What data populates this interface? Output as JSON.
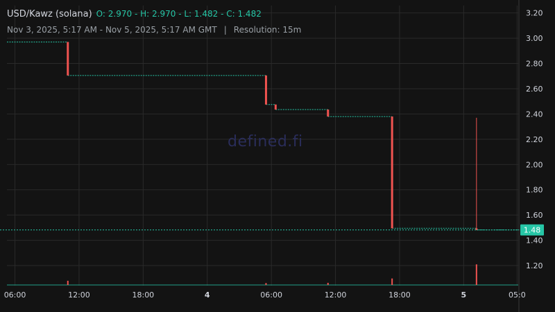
{
  "legend": {
    "pair": "USD/Kawz (solana)",
    "open_label": "O:",
    "open": "2.970",
    "high_label": "H:",
    "high": "2.970",
    "low_label": "L:",
    "low": "1.482",
    "close_label": "C:",
    "close": "1.482",
    "range": "Nov 3, 2025, 5:17 AM - Nov 5, 2025, 5:17 AM GMT",
    "separator": "|",
    "resolution": "Resolution: 15m"
  },
  "watermark": "defined.fi",
  "colors": {
    "background": "#131313",
    "grid": "#2a2a2a",
    "up": "#26c6a6",
    "down": "#ef5350",
    "price_tag": "#26c6a6"
  },
  "chart_data": {
    "type": "candlestick",
    "y_axis": {
      "min": 1.0,
      "max": 3.25,
      "ticks": [
        1.2,
        1.4,
        1.6,
        1.8,
        2.0,
        2.2,
        2.4,
        2.6,
        2.8,
        3.0,
        3.2
      ]
    },
    "x_axis": {
      "ticks": [
        {
          "label": "06:00",
          "hours": 6,
          "bold": false
        },
        {
          "label": "12:00",
          "hours": 12,
          "bold": false
        },
        {
          "label": "18:00",
          "hours": 18,
          "bold": false
        },
        {
          "label": "4",
          "hours": 24,
          "bold": true
        },
        {
          "label": "06:00",
          "hours": 30,
          "bold": false
        },
        {
          "label": "12:00",
          "hours": 36,
          "bold": false
        },
        {
          "label": "18:00",
          "hours": 42,
          "bold": false
        },
        {
          "label": "5",
          "hours": 48,
          "bold": true
        },
        {
          "label": "05:0",
          "hours": 53,
          "bold": false
        }
      ]
    },
    "last_price": "1.48",
    "last_value": 1.482,
    "steps": [
      {
        "from": 5.25,
        "to": 10.95,
        "value": 2.97
      },
      {
        "from": 10.95,
        "to": 29.5,
        "value": 2.705
      },
      {
        "from": 29.5,
        "to": 30.4,
        "value": 2.475
      },
      {
        "from": 30.4,
        "to": 35.3,
        "value": 2.435
      },
      {
        "from": 35.3,
        "to": 41.3,
        "value": 2.38
      },
      {
        "from": 41.3,
        "to": 49.2,
        "value": 1.495
      },
      {
        "from": 49.2,
        "to": 53.5,
        "value": 1.482
      }
    ],
    "candles": [
      {
        "t": 10.95,
        "open": 2.97,
        "high": 2.97,
        "low": 2.705,
        "close": 2.705
      },
      {
        "t": 29.5,
        "open": 2.705,
        "high": 2.705,
        "low": 2.475,
        "close": 2.475
      },
      {
        "t": 30.4,
        "open": 2.475,
        "high": 2.475,
        "low": 2.435,
        "close": 2.435
      },
      {
        "t": 35.3,
        "open": 2.435,
        "high": 2.435,
        "low": 2.38,
        "close": 2.38
      },
      {
        "t": 41.3,
        "open": 2.38,
        "high": 2.38,
        "low": 1.495,
        "close": 1.495
      },
      {
        "t": 49.2,
        "open": 1.495,
        "high": 2.37,
        "low": 1.482,
        "close": 1.482
      }
    ],
    "volume": [
      {
        "t": 10.95,
        "v": 0.55
      },
      {
        "t": 29.5,
        "v": 0.25
      },
      {
        "t": 35.3,
        "v": 0.28
      },
      {
        "t": 41.3,
        "v": 0.85
      },
      {
        "t": 49.2,
        "v": 2.7
      }
    ]
  }
}
